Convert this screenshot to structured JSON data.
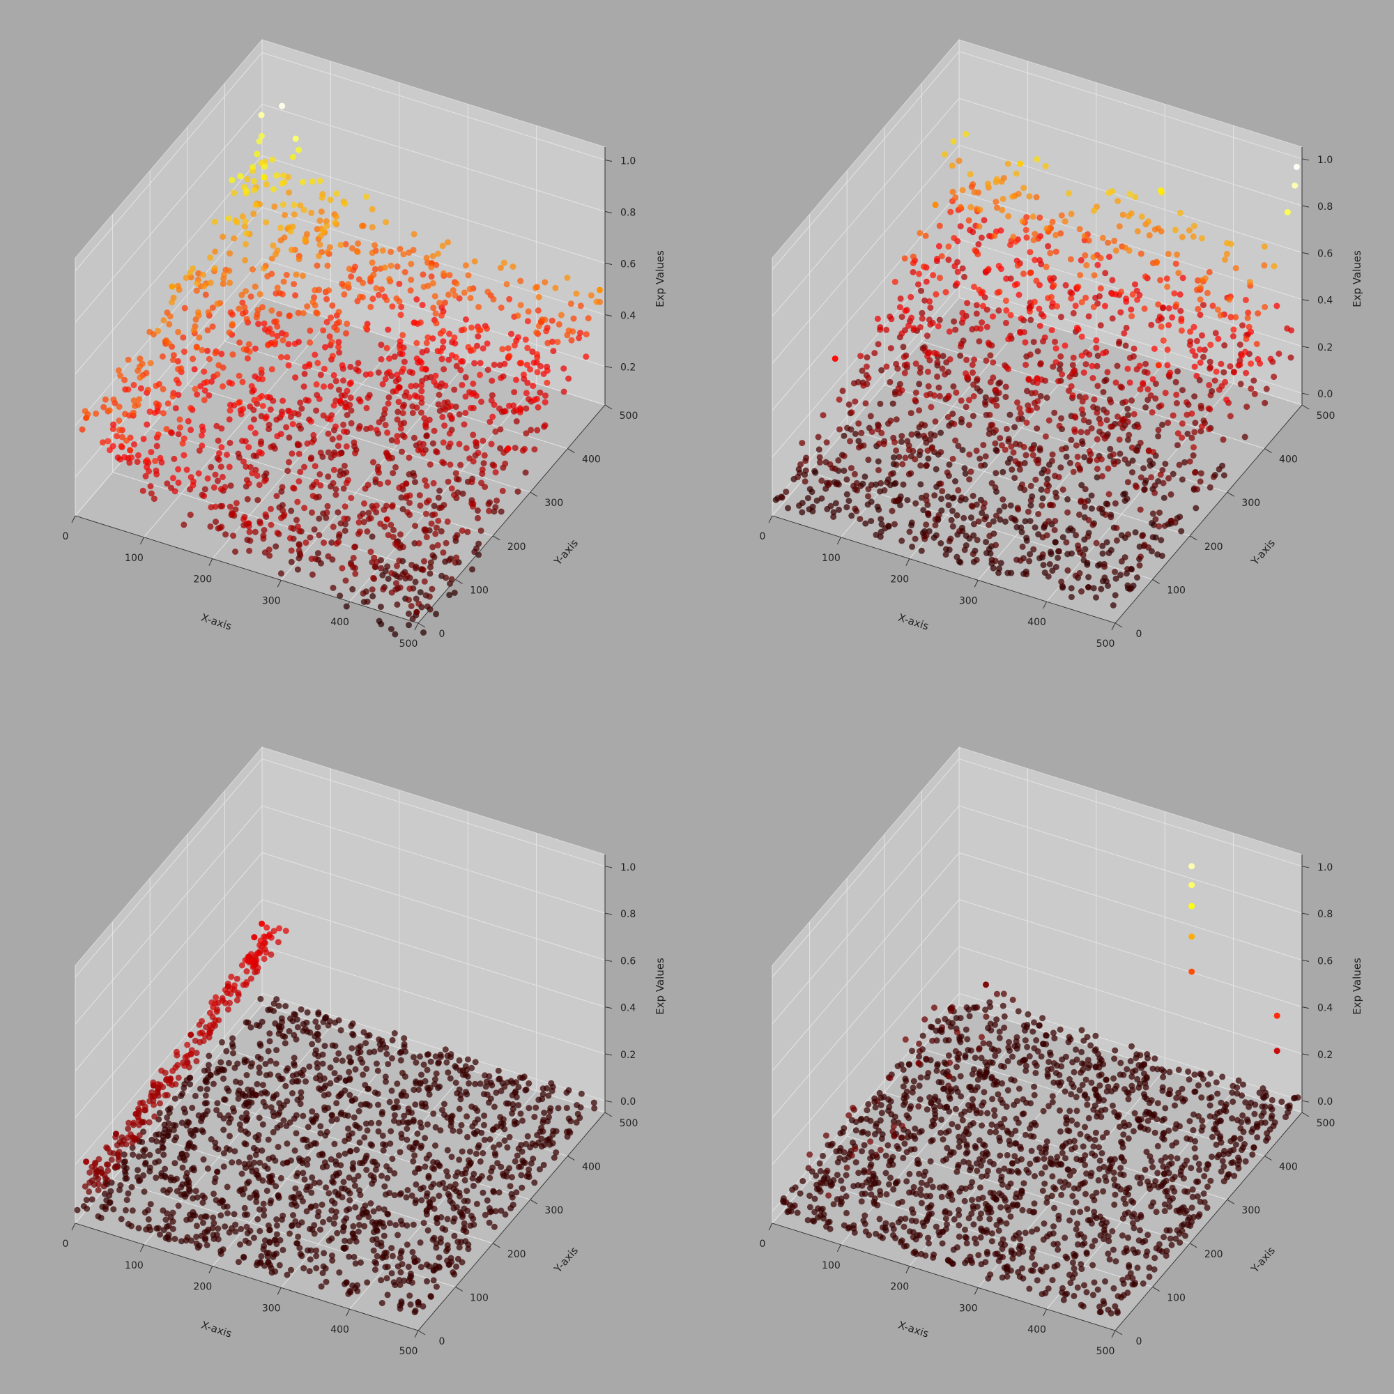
{
  "figure": {
    "background": "#a9a9a9",
    "pane_color": "#c6c6c6",
    "colormap": "hot"
  },
  "chart_data": [
    {
      "type": "scatter3d",
      "panel": "top-left",
      "title": "",
      "xlabel": "X-axis",
      "ylabel": "Y-axis",
      "zlabel": "Exp Values",
      "xlim": [
        0,
        500
      ],
      "ylim": [
        0,
        500
      ],
      "zlim": [
        0.05,
        1.05
      ],
      "x_ticks": [
        "0",
        "100",
        "200",
        "300",
        "400",
        "500"
      ],
      "y_ticks": [
        "0",
        "100",
        "200",
        "300",
        "400",
        "500"
      ],
      "z_ticks": [
        "0.2",
        "0.4",
        "0.6",
        "0.8",
        "1.0"
      ],
      "grid": true,
      "surface": "dense cloud, high near x=0 (~0.45) and y=500 (~0.48), lowest near x=500, y=0 (~0.05)",
      "points": [
        {
          "x": 10,
          "y": 480,
          "z": 0.8
        },
        {
          "x": 40,
          "y": 480,
          "z": 0.86
        },
        {
          "x": 60,
          "y": 480,
          "z": 0.75
        },
        {
          "x": 5,
          "y": 250,
          "z": 0.52
        },
        {
          "x": 5,
          "y": 20,
          "z": 0.4
        },
        {
          "x": 250,
          "y": 495,
          "z": 0.4
        },
        {
          "x": 495,
          "y": 495,
          "z": 0.5
        },
        {
          "x": 495,
          "y": 250,
          "z": 0.3
        },
        {
          "x": 495,
          "y": 5,
          "z": 0.08
        },
        {
          "x": 250,
          "y": 5,
          "z": 0.22
        },
        {
          "x": 250,
          "y": 250,
          "z": 0.28
        },
        {
          "x": 400,
          "y": 100,
          "z": 0.2
        }
      ]
    },
    {
      "type": "scatter3d",
      "panel": "top-right",
      "title": "",
      "xlabel": "X-axis",
      "ylabel": "Y-axis",
      "zlabel": "Exp Values",
      "xlim": [
        0,
        500
      ],
      "ylim": [
        0,
        500
      ],
      "zlim": [
        -0.05,
        1.05
      ],
      "x_ticks": [
        "0",
        "100",
        "200",
        "300",
        "400",
        "500"
      ],
      "y_ticks": [
        "0",
        "100",
        "200",
        "300",
        "400",
        "500"
      ],
      "z_ticks": [
        "0.0",
        "0.2",
        "0.4",
        "0.6",
        "0.8",
        "1.0"
      ],
      "grid": true,
      "surface": "wide spread, values rise toward y=500; many points near 0",
      "points": [
        {
          "x": 495,
          "y": 495,
          "z": 0.97
        },
        {
          "x": 495,
          "y": 490,
          "z": 0.9
        },
        {
          "x": 490,
          "y": 480,
          "z": 0.8
        },
        {
          "x": 100,
          "y": 480,
          "z": 0.65
        },
        {
          "x": 300,
          "y": 490,
          "z": 0.7
        },
        {
          "x": 10,
          "y": 150,
          "z": 0.35
        },
        {
          "x": 20,
          "y": 400,
          "z": 0.55
        },
        {
          "x": 250,
          "y": 250,
          "z": 0.3
        },
        {
          "x": 450,
          "y": 20,
          "z": 0.02
        },
        {
          "x": 200,
          "y": 50,
          "z": 0.05
        },
        {
          "x": 400,
          "y": 300,
          "z": 0.4
        }
      ]
    },
    {
      "type": "scatter3d",
      "panel": "bottom-left",
      "title": "",
      "xlabel": "X-axis",
      "ylabel": "Y-axis",
      "zlabel": "Exp Values",
      "xlim": [
        0,
        500
      ],
      "ylim": [
        0,
        500
      ],
      "zlim": [
        -0.05,
        1.05
      ],
      "x_ticks": [
        "0",
        "100",
        "200",
        "300",
        "400",
        "500"
      ],
      "y_ticks": [
        "0",
        "100",
        "200",
        "300",
        "400",
        "500"
      ],
      "z_ticks": [
        "0.0",
        "0.2",
        "0.4",
        "0.6",
        "0.8",
        "1.0"
      ],
      "grid": true,
      "surface": "near-zero floor; ridge of points near x=0 rising to ~0.3 toward y=500",
      "points": [
        {
          "x": 5,
          "y": 20,
          "z": 0.18
        },
        {
          "x": 5,
          "y": 100,
          "z": 0.15
        },
        {
          "x": 5,
          "y": 200,
          "z": 0.17
        },
        {
          "x": 5,
          "y": 300,
          "z": 0.2
        },
        {
          "x": 5,
          "y": 400,
          "z": 0.22
        },
        {
          "x": 5,
          "y": 470,
          "z": 0.3
        },
        {
          "x": 5,
          "y": 490,
          "z": 0.32
        },
        {
          "x": 100,
          "y": 300,
          "z": 0.03
        },
        {
          "x": 200,
          "y": 200,
          "z": 0.02
        }
      ]
    },
    {
      "type": "scatter3d",
      "panel": "bottom-right",
      "title": "",
      "xlabel": "X-axis",
      "ylabel": "Y-axis",
      "zlabel": "Exp Values",
      "xlim": [
        0,
        500
      ],
      "ylim": [
        0,
        500
      ],
      "zlim": [
        -0.05,
        1.05
      ],
      "x_ticks": [
        "0",
        "100",
        "200",
        "300",
        "400",
        "500"
      ],
      "y_ticks": [
        "0",
        "100",
        "200",
        "300",
        "400",
        "500"
      ],
      "z_ticks": [
        "0.0",
        "0.2",
        "0.4",
        "0.6",
        "0.8",
        "1.0"
      ],
      "grid": true,
      "surface": "flat near zero; a few spikes",
      "points": [
        {
          "x": 350,
          "y": 480,
          "z": 0.9
        },
        {
          "x": 350,
          "y": 480,
          "z": 0.82
        },
        {
          "x": 350,
          "y": 480,
          "z": 0.73
        },
        {
          "x": 350,
          "y": 480,
          "z": 0.6
        },
        {
          "x": 350,
          "y": 480,
          "z": 0.45
        },
        {
          "x": 480,
          "y": 470,
          "z": 0.4
        },
        {
          "x": 480,
          "y": 470,
          "z": 0.25
        },
        {
          "x": 50,
          "y": 300,
          "z": 0.12
        },
        {
          "x": 50,
          "y": 480,
          "z": 0.12
        }
      ]
    }
  ]
}
